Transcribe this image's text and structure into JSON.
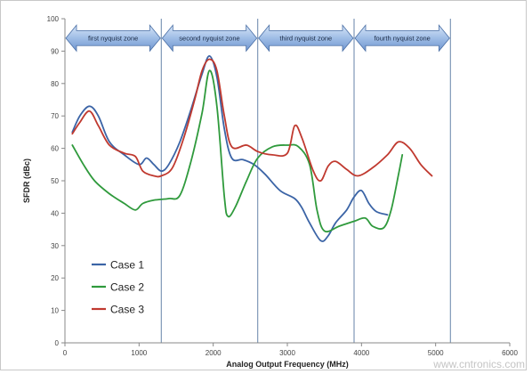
{
  "watermark": "www.cntronics.com",
  "chart_data": {
    "type": "line",
    "title": "",
    "xlabel": "Analog Output Frequency (MHz)",
    "ylabel": "SFDR (dBc)",
    "xlim": [
      0,
      6000
    ],
    "ylim": [
      0,
      100
    ],
    "xticks": [
      0,
      1000,
      2000,
      3000,
      4000,
      5000,
      6000
    ],
    "yticks": [
      0,
      10,
      20,
      30,
      40,
      50,
      60,
      70,
      80,
      90,
      100
    ],
    "grid": false,
    "legend_position": "bottom-left",
    "zone_boundaries": [
      1300,
      2600,
      3900,
      5200
    ],
    "zones": [
      {
        "label": "first nyquist zone",
        "start": 0,
        "end": 1300
      },
      {
        "label": "second nyquist zone",
        "start": 1300,
        "end": 2600
      },
      {
        "label": "third nyquist zone",
        "start": 2600,
        "end": 3900
      },
      {
        "label": "fourth nyquist zone",
        "start": 3900,
        "end": 5200
      }
    ],
    "series": [
      {
        "name": "Case 1",
        "color": "#3b64a6",
        "points": [
          [
            100,
            65
          ],
          [
            200,
            70
          ],
          [
            330,
            73
          ],
          [
            450,
            70
          ],
          [
            600,
            62
          ],
          [
            800,
            58
          ],
          [
            1000,
            55
          ],
          [
            1100,
            57
          ],
          [
            1200,
            55
          ],
          [
            1300,
            53
          ],
          [
            1400,
            55
          ],
          [
            1550,
            62
          ],
          [
            1700,
            72
          ],
          [
            1850,
            83
          ],
          [
            1950,
            88.5
          ],
          [
            2050,
            82
          ],
          [
            2150,
            66
          ],
          [
            2250,
            57
          ],
          [
            2400,
            56.5
          ],
          [
            2550,
            55
          ],
          [
            2700,
            52
          ],
          [
            2900,
            47
          ],
          [
            3100,
            44.5
          ],
          [
            3200,
            41.5
          ],
          [
            3300,
            37
          ],
          [
            3450,
            31.5
          ],
          [
            3550,
            33
          ],
          [
            3650,
            37
          ],
          [
            3800,
            41
          ],
          [
            3900,
            45
          ],
          [
            4000,
            47
          ],
          [
            4100,
            43
          ],
          [
            4200,
            40.5
          ],
          [
            4350,
            39.5
          ]
        ]
      },
      {
        "name": "Case 2",
        "color": "#2f9a3c",
        "points": [
          [
            100,
            61
          ],
          [
            250,
            55
          ],
          [
            400,
            50
          ],
          [
            600,
            46
          ],
          [
            800,
            43
          ],
          [
            950,
            41
          ],
          [
            1050,
            43
          ],
          [
            1200,
            44
          ],
          [
            1400,
            44.5
          ],
          [
            1550,
            45.5
          ],
          [
            1700,
            56
          ],
          [
            1850,
            71
          ],
          [
            1950,
            84
          ],
          [
            2050,
            73
          ],
          [
            2150,
            45
          ],
          [
            2200,
            39
          ],
          [
            2300,
            42
          ],
          [
            2450,
            50
          ],
          [
            2600,
            57
          ],
          [
            2800,
            60.5
          ],
          [
            3000,
            61
          ],
          [
            3150,
            60.5
          ],
          [
            3300,
            55
          ],
          [
            3400,
            41
          ],
          [
            3500,
            34.5
          ],
          [
            3700,
            36
          ],
          [
            3900,
            37.5
          ],
          [
            4050,
            38.5
          ],
          [
            4150,
            36
          ],
          [
            4300,
            35.5
          ],
          [
            4400,
            41
          ],
          [
            4500,
            52
          ],
          [
            4550,
            58
          ]
        ]
      },
      {
        "name": "Case 3",
        "color": "#c0392f",
        "points": [
          [
            100,
            64.5
          ],
          [
            200,
            68
          ],
          [
            330,
            71.5
          ],
          [
            450,
            67
          ],
          [
            600,
            61
          ],
          [
            800,
            58.5
          ],
          [
            950,
            57.5
          ],
          [
            1050,
            53
          ],
          [
            1200,
            51.5
          ],
          [
            1300,
            51.5
          ],
          [
            1450,
            54
          ],
          [
            1600,
            63
          ],
          [
            1750,
            75
          ],
          [
            1850,
            84
          ],
          [
            1950,
            87.5
          ],
          [
            2050,
            84
          ],
          [
            2150,
            70
          ],
          [
            2250,
            60.5
          ],
          [
            2450,
            61
          ],
          [
            2600,
            59
          ],
          [
            2800,
            58
          ],
          [
            3000,
            58.5
          ],
          [
            3100,
            67
          ],
          [
            3200,
            63
          ],
          [
            3350,
            53
          ],
          [
            3450,
            50
          ],
          [
            3550,
            54.5
          ],
          [
            3650,
            56
          ],
          [
            3800,
            53.5
          ],
          [
            3950,
            51.5
          ],
          [
            4150,
            54
          ],
          [
            4350,
            58
          ],
          [
            4500,
            62
          ],
          [
            4650,
            60
          ],
          [
            4800,
            55
          ],
          [
            4950,
            51.5
          ]
        ]
      }
    ]
  }
}
